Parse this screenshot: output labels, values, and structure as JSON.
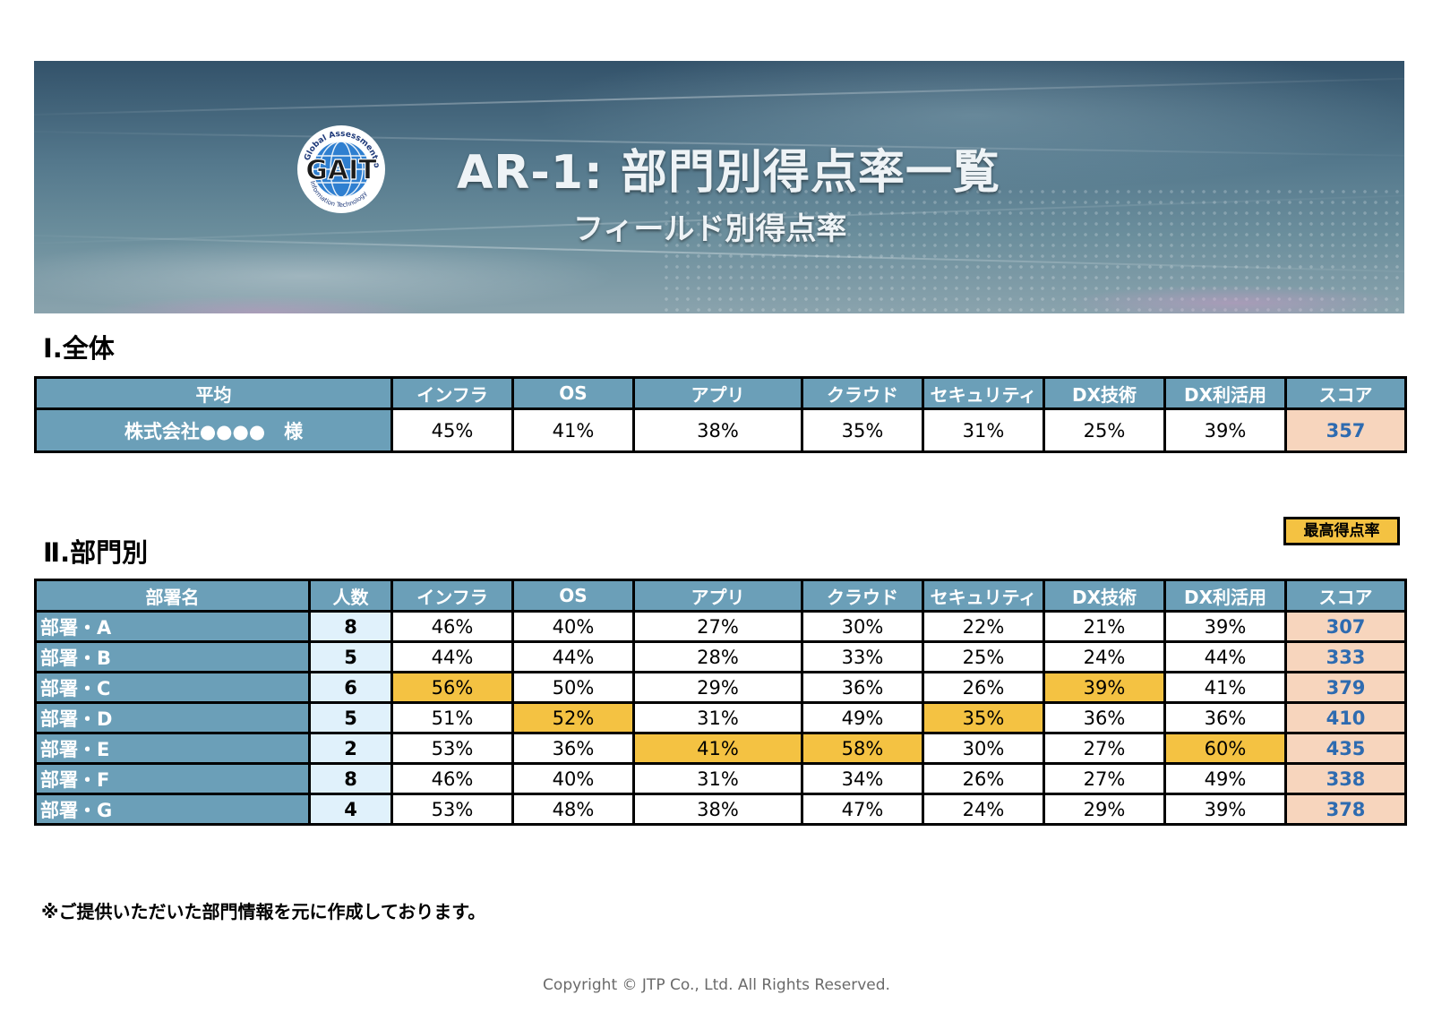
{
  "banner": {
    "title": "AR-1: 部門別得点率一覧",
    "subtitle": "フィールド別得点率",
    "logo": {
      "main_text": "GAIT",
      "ring_top": "Global Assessment of",
      "ring_bottom": "Information Technology"
    }
  },
  "overall": {
    "section_title": "Ⅰ.全体",
    "headers": [
      "平均",
      "インフラ",
      "OS",
      "アプリ",
      "クラウド",
      "セキュリティ",
      "DX技術",
      "DX利活用",
      "スコア"
    ],
    "row": {
      "label": "株式会社●●●●　様",
      "values": [
        "45%",
        "41%",
        "38%",
        "35%",
        "31%",
        "25%",
        "39%"
      ],
      "score": "357"
    }
  },
  "departments": {
    "section_title": "Ⅱ.部門別",
    "legend_label": "最高得点率",
    "headers": [
      "部署名",
      "人数",
      "インフラ",
      "OS",
      "アプリ",
      "クラウド",
      "セキュリティ",
      "DX技術",
      "DX利活用",
      "スコア"
    ],
    "rows": [
      {
        "name": "部署・A",
        "count": "8",
        "values": [
          "46%",
          "40%",
          "27%",
          "30%",
          "22%",
          "21%",
          "39%"
        ],
        "score": "307",
        "highlight": []
      },
      {
        "name": "部署・B",
        "count": "5",
        "values": [
          "44%",
          "44%",
          "28%",
          "33%",
          "25%",
          "24%",
          "44%"
        ],
        "score": "333",
        "highlight": []
      },
      {
        "name": "部署・C",
        "count": "6",
        "values": [
          "56%",
          "50%",
          "29%",
          "36%",
          "26%",
          "39%",
          "41%"
        ],
        "score": "379",
        "highlight": [
          0,
          5
        ]
      },
      {
        "name": "部署・D",
        "count": "5",
        "values": [
          "51%",
          "52%",
          "31%",
          "49%",
          "35%",
          "36%",
          "36%"
        ],
        "score": "410",
        "highlight": [
          1,
          4
        ]
      },
      {
        "name": "部署・E",
        "count": "2",
        "values": [
          "53%",
          "36%",
          "41%",
          "58%",
          "30%",
          "27%",
          "60%"
        ],
        "score": "435",
        "highlight": [
          2,
          3,
          6
        ]
      },
      {
        "name": "部署・F",
        "count": "8",
        "values": [
          "46%",
          "40%",
          "31%",
          "34%",
          "26%",
          "27%",
          "49%"
        ],
        "score": "338",
        "highlight": []
      },
      {
        "name": "部署・G",
        "count": "4",
        "values": [
          "53%",
          "48%",
          "38%",
          "47%",
          "24%",
          "29%",
          "39%"
        ],
        "score": "378",
        "highlight": []
      }
    ]
  },
  "note": "※ご提供いただいた部門情報を元に作成しております。",
  "copyright": "Copyright © JTP Co., Ltd. All Rights Reserved.",
  "colors": {
    "header_bg": "#6b9fb8",
    "highlight": "#f4c242",
    "score_bg": "#f7d5bd",
    "score_text": "#2e6bb0",
    "count_bg": "#e0f1fb"
  }
}
